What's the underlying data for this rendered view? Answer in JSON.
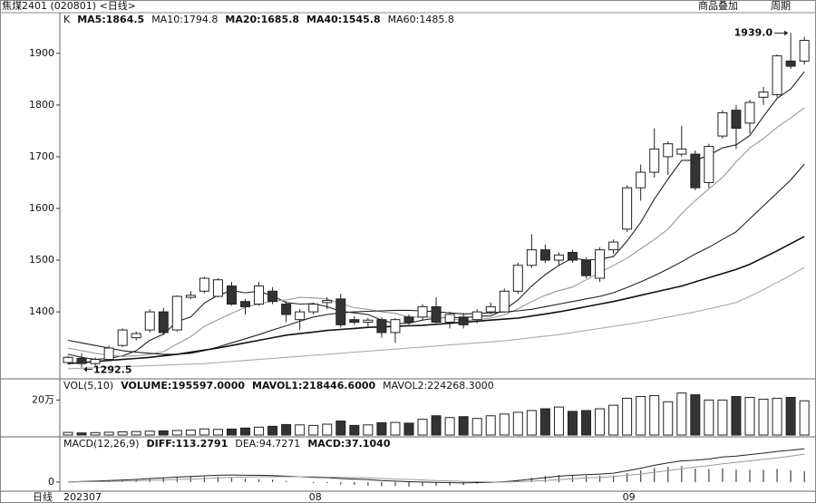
{
  "header": {
    "title": "焦煤2401 (020801) <日线>",
    "buttons": [
      "商品叠加",
      "周期"
    ]
  },
  "x_axis_label": "日线",
  "chart_data": [
    {
      "type": "candlestick",
      "indicator_label": "K",
      "indicator_values": [
        {
          "text": "MA5:1864.5",
          "color": "#111111"
        },
        {
          "text": "MA10:1794.8",
          "color": "#888888"
        },
        {
          "text": "MA20:1685.8",
          "color": "#111111"
        },
        {
          "text": "MA40:1545.8",
          "color": "#111111"
        },
        {
          "text": "MA60:1485.8",
          "color": "#888888"
        }
      ],
      "categories": [
        "202307",
        null,
        null,
        null,
        null,
        null,
        null,
        null,
        null,
        null,
        null,
        null,
        null,
        null,
        null,
        null,
        null,
        null,
        "08",
        null,
        null,
        null,
        null,
        null,
        null,
        null,
        null,
        null,
        null,
        null,
        null,
        null,
        null,
        null,
        null,
        null,
        null,
        null,
        null,
        null,
        null,
        "09",
        null,
        null,
        null,
        null,
        null,
        null,
        null,
        null,
        null,
        null,
        null,
        null,
        null
      ],
      "open": [
        1302,
        1310,
        1300,
        1308,
        1335,
        1350,
        1365,
        1400,
        1365,
        1428,
        1440,
        1430,
        1450,
        1420,
        1415,
        1440,
        1415,
        1385,
        1400,
        1418,
        1425,
        1385,
        1380,
        1385,
        1360,
        1390,
        1390,
        1410,
        1380,
        1390,
        1385,
        1400,
        1400,
        1440,
        1490,
        1520,
        1500,
        1515,
        1500,
        1465,
        1520,
        1560,
        1640,
        1670,
        1700,
        1705,
        1705,
        1650,
        1740,
        1790,
        1765,
        1815,
        1820,
        1885,
        1885
      ],
      "high": [
        1315,
        1320,
        1312,
        1335,
        1368,
        1362,
        1405,
        1408,
        1432,
        1440,
        1468,
        1465,
        1458,
        1425,
        1458,
        1448,
        1420,
        1405,
        1418,
        1428,
        1435,
        1392,
        1388,
        1390,
        1388,
        1395,
        1415,
        1428,
        1400,
        1398,
        1405,
        1418,
        1445,
        1495,
        1550,
        1530,
        1515,
        1520,
        1505,
        1525,
        1540,
        1645,
        1685,
        1755,
        1730,
        1760,
        1712,
        1725,
        1790,
        1800,
        1810,
        1835,
        1898,
        1939,
        1932
      ],
      "low": [
        1298,
        1292.5,
        1296,
        1305,
        1332,
        1345,
        1360,
        1355,
        1362,
        1425,
        1436,
        1428,
        1412,
        1395,
        1412,
        1415,
        1380,
        1365,
        1395,
        1405,
        1370,
        1375,
        1372,
        1350,
        1340,
        1375,
        1385,
        1378,
        1368,
        1368,
        1378,
        1395,
        1398,
        1435,
        1485,
        1495,
        1490,
        1495,
        1465,
        1458,
        1512,
        1555,
        1615,
        1660,
        1665,
        1700,
        1635,
        1640,
        1735,
        1715,
        1745,
        1800,
        1815,
        1870,
        1878
      ],
      "close": [
        1312,
        1300,
        1308,
        1330,
        1365,
        1358,
        1400,
        1360,
        1430,
        1432,
        1465,
        1462,
        1415,
        1410,
        1450,
        1420,
        1395,
        1400,
        1415,
        1422,
        1375,
        1380,
        1384,
        1360,
        1385,
        1380,
        1410,
        1380,
        1395,
        1375,
        1400,
        1410,
        1440,
        1490,
        1520,
        1500,
        1510,
        1500,
        1470,
        1520,
        1535,
        1640,
        1670,
        1715,
        1725,
        1715,
        1640,
        1720,
        1785,
        1755,
        1805,
        1825,
        1895,
        1875,
        1925
      ],
      "up_color": "#ffffff",
      "down_color": "#333333",
      "lines": [
        {
          "name": "MA5",
          "color": "#222222",
          "values": [
            1318,
            1312,
            1308,
            1310,
            1315,
            1325,
            1345,
            1357,
            1381,
            1390,
            1417,
            1432,
            1441,
            1437,
            1440,
            1431,
            1418,
            1415,
            1416,
            1410,
            1401,
            1398,
            1395,
            1384,
            1377,
            1378,
            1384,
            1388,
            1390,
            1388,
            1392,
            1392,
            1404,
            1423,
            1450,
            1472,
            1490,
            1504,
            1500,
            1502,
            1507,
            1537,
            1573,
            1618,
            1657,
            1693,
            1693,
            1703,
            1717,
            1723,
            1741,
            1778,
            1813,
            1831,
            1864.5
          ]
        },
        {
          "name": "MA10",
          "color": "#999999",
          "values": [
            1330,
            1325,
            1320,
            1316,
            1314,
            1315,
            1318,
            1323,
            1338,
            1352,
            1372,
            1385,
            1397,
            1409,
            1415,
            1421,
            1423,
            1428,
            1427,
            1425,
            1416,
            1408,
            1405,
            1400,
            1397,
            1390,
            1390,
            1390,
            1387,
            1383,
            1385,
            1388,
            1394,
            1406,
            1420,
            1432,
            1441,
            1448,
            1462,
            1476,
            1490,
            1504,
            1522,
            1540,
            1560,
            1590,
            1615,
            1638,
            1660,
            1690,
            1717,
            1735,
            1757,
            1775,
            1794.8
          ]
        },
        {
          "name": "MA20",
          "color": "#222222",
          "values": [
            1345,
            1340,
            1335,
            1330,
            1325,
            1322,
            1320,
            1318,
            1318,
            1320,
            1325,
            1332,
            1340,
            1348,
            1356,
            1365,
            1373,
            1382,
            1390,
            1395,
            1398,
            1400,
            1401,
            1402,
            1403,
            1403,
            1402,
            1400,
            1398,
            1396,
            1397,
            1398,
            1400,
            1402,
            1405,
            1410,
            1415,
            1420,
            1425,
            1430,
            1437,
            1447,
            1458,
            1470,
            1483,
            1497,
            1512,
            1525,
            1540,
            1555,
            1580,
            1605,
            1630,
            1655,
            1685.8
          ]
        },
        {
          "name": "MA40",
          "color": "#111111",
          "values": [
            1300,
            1302,
            1304,
            1306,
            1308,
            1310,
            1312,
            1315,
            1318,
            1322,
            1326,
            1330,
            1335,
            1340,
            1345,
            1350,
            1355,
            1358,
            1361,
            1364,
            1366,
            1368,
            1370,
            1371,
            1372,
            1373,
            1374,
            1376,
            1378,
            1380,
            1382,
            1384,
            1386,
            1388,
            1392,
            1396,
            1400,
            1405,
            1410,
            1415,
            1420,
            1426,
            1432,
            1438,
            1444,
            1450,
            1458,
            1466,
            1474,
            1482,
            1492,
            1505,
            1518,
            1532,
            1545.8
          ]
        },
        {
          "name": "MA60",
          "color": "#aaaaaa",
          "values": [
            1290,
            1291,
            1292,
            1293,
            1294,
            1295,
            1296,
            1297,
            1298,
            1299,
            1300,
            1302,
            1304,
            1306,
            1308,
            1310,
            1312,
            1314,
            1316,
            1318,
            1320,
            1322,
            1324,
            1326,
            1328,
            1330,
            1332,
            1334,
            1336,
            1338,
            1340,
            1342,
            1344,
            1347,
            1350,
            1353,
            1356,
            1360,
            1364,
            1368,
            1372,
            1376,
            1380,
            1385,
            1390,
            1395,
            1400,
            1406,
            1412,
            1418,
            1430,
            1443,
            1457,
            1471,
            1485.8
          ]
        }
      ],
      "annotations": [
        {
          "label": "1939.0",
          "value": 1939
        },
        {
          "label": "1292.5",
          "value": 1292.5
        }
      ],
      "ylim": [
        1274,
        1954
      ],
      "yticks": [
        1400,
        1500,
        1600,
        1700,
        1800,
        1900
      ]
    },
    {
      "type": "volume",
      "indicator_label": "VOL(5,10)",
      "indicator_values": [
        {
          "text": "VOLUME:195597.0000",
          "color": "#111111"
        },
        {
          "text": "MAVOL1:218446.6000",
          "color": "#111111"
        },
        {
          "text": "MAVOL2:224268.3000",
          "color": "#888888"
        }
      ],
      "values": [
        15000,
        12000,
        14000,
        16000,
        18000,
        20000,
        22000,
        24000,
        26000,
        28000,
        35000,
        32000,
        34000,
        40000,
        45000,
        50000,
        60000,
        58000,
        55000,
        62000,
        80000,
        55000,
        58000,
        70000,
        72000,
        68000,
        90000,
        110000,
        100000,
        105000,
        95000,
        110000,
        120000,
        130000,
        140000,
        150000,
        160000,
        135000,
        140000,
        150000,
        170000,
        210000,
        220000,
        225000,
        190000,
        240000,
        230000,
        200000,
        200000,
        220000,
        215000,
        205000,
        210000,
        215000,
        195597
      ],
      "ylim": [
        0,
        290000
      ],
      "yticks": [
        {
          "value": 200000,
          "label": "20万"
        }
      ]
    },
    {
      "type": "macd",
      "indicator_label": "MACD(12,26,9)",
      "indicator_values": [
        {
          "text": "DIFF:113.2791",
          "color": "#111111"
        },
        {
          "text": "DEA:94.7271",
          "color": "#888888"
        },
        {
          "text": "MACD:37.1040",
          "color": "#111111"
        }
      ],
      "series": [
        {
          "name": "DIFF",
          "color": "#222222",
          "values": [
            0,
            2,
            3,
            5,
            7,
            9,
            12,
            14,
            17,
            19,
            21,
            23,
            24,
            23,
            23,
            22,
            20,
            18,
            16,
            15,
            12,
            10,
            8,
            5,
            3,
            1,
            0,
            -1,
            -2,
            -3,
            -2,
            -1,
            1,
            5,
            10,
            15,
            20,
            23,
            25,
            27,
            30,
            38,
            47,
            57,
            65,
            72,
            74,
            78,
            85,
            88,
            93,
            98,
            104,
            108,
            113.2791
          ]
        },
        {
          "name": "DEA",
          "color": "#999999",
          "values": [
            0,
            1,
            1,
            2,
            3,
            4,
            6,
            7,
            9,
            10,
            12,
            14,
            16,
            17,
            18,
            18,
            18,
            18,
            18,
            17,
            16,
            15,
            14,
            12,
            10,
            9,
            7,
            5,
            4,
            2,
            1,
            0,
            0,
            1,
            3,
            5,
            8,
            11,
            14,
            16,
            19,
            23,
            27,
            33,
            39,
            45,
            51,
            56,
            62,
            67,
            72,
            77,
            82,
            88,
            94.7271
          ]
        }
      ],
      "bars": [
        0,
        2,
        4,
        6,
        8,
        10,
        12,
        14,
        16,
        18,
        18,
        18,
        16,
        12,
        10,
        8,
        4,
        0,
        -4,
        -4,
        -8,
        -10,
        -12,
        -14,
        -14,
        -16,
        -14,
        -12,
        -12,
        -10,
        -6,
        -2,
        2,
        8,
        14,
        20,
        24,
        24,
        22,
        22,
        22,
        30,
        40,
        48,
        52,
        54,
        46,
        44,
        46,
        42,
        42,
        42,
        44,
        40,
        37.104
      ],
      "bar_color": "#444444",
      "ylim": [
        -25,
        135
      ],
      "yticks": [
        0
      ]
    }
  ]
}
